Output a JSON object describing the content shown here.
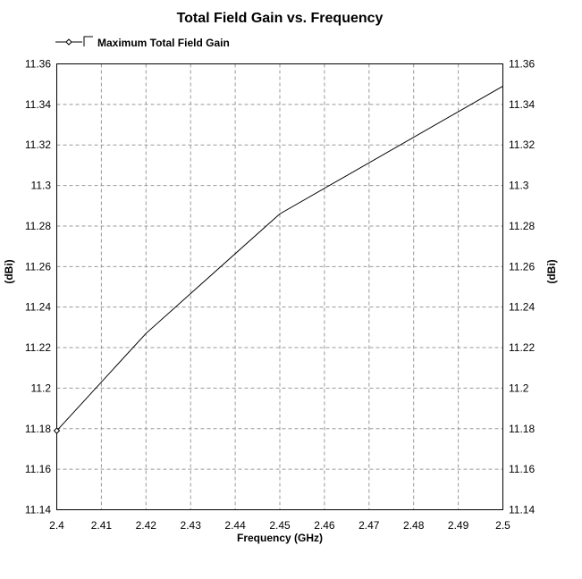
{
  "chart_data": {
    "type": "line",
    "title": "Total Field Gain vs. Frequency",
    "xlabel": "Frequency (GHz)",
    "ylabel": "(dBi)",
    "ylabel_right": "(dBi)",
    "xlim": [
      2.4,
      2.5
    ],
    "ylim": [
      11.14,
      11.36
    ],
    "x_ticks": [
      "2.4",
      "2.41",
      "2.42",
      "2.43",
      "2.44",
      "2.45",
      "2.46",
      "2.47",
      "2.48",
      "2.49",
      "2.5"
    ],
    "y_ticks": [
      "11.14",
      "11.16",
      "11.18",
      "11.2",
      "11.22",
      "11.24",
      "11.26",
      "11.28",
      "11.3",
      "11.32",
      "11.34",
      "11.36"
    ],
    "grid": true,
    "legend_position": "top-left",
    "series": [
      {
        "name": "Maximum Total Field Gain",
        "x": [
          2.4,
          2.42,
          2.45,
          2.5
        ],
        "y": [
          11.179,
          11.227,
          11.286,
          11.349
        ],
        "color": "#000000",
        "marker": "diamond"
      }
    ]
  }
}
